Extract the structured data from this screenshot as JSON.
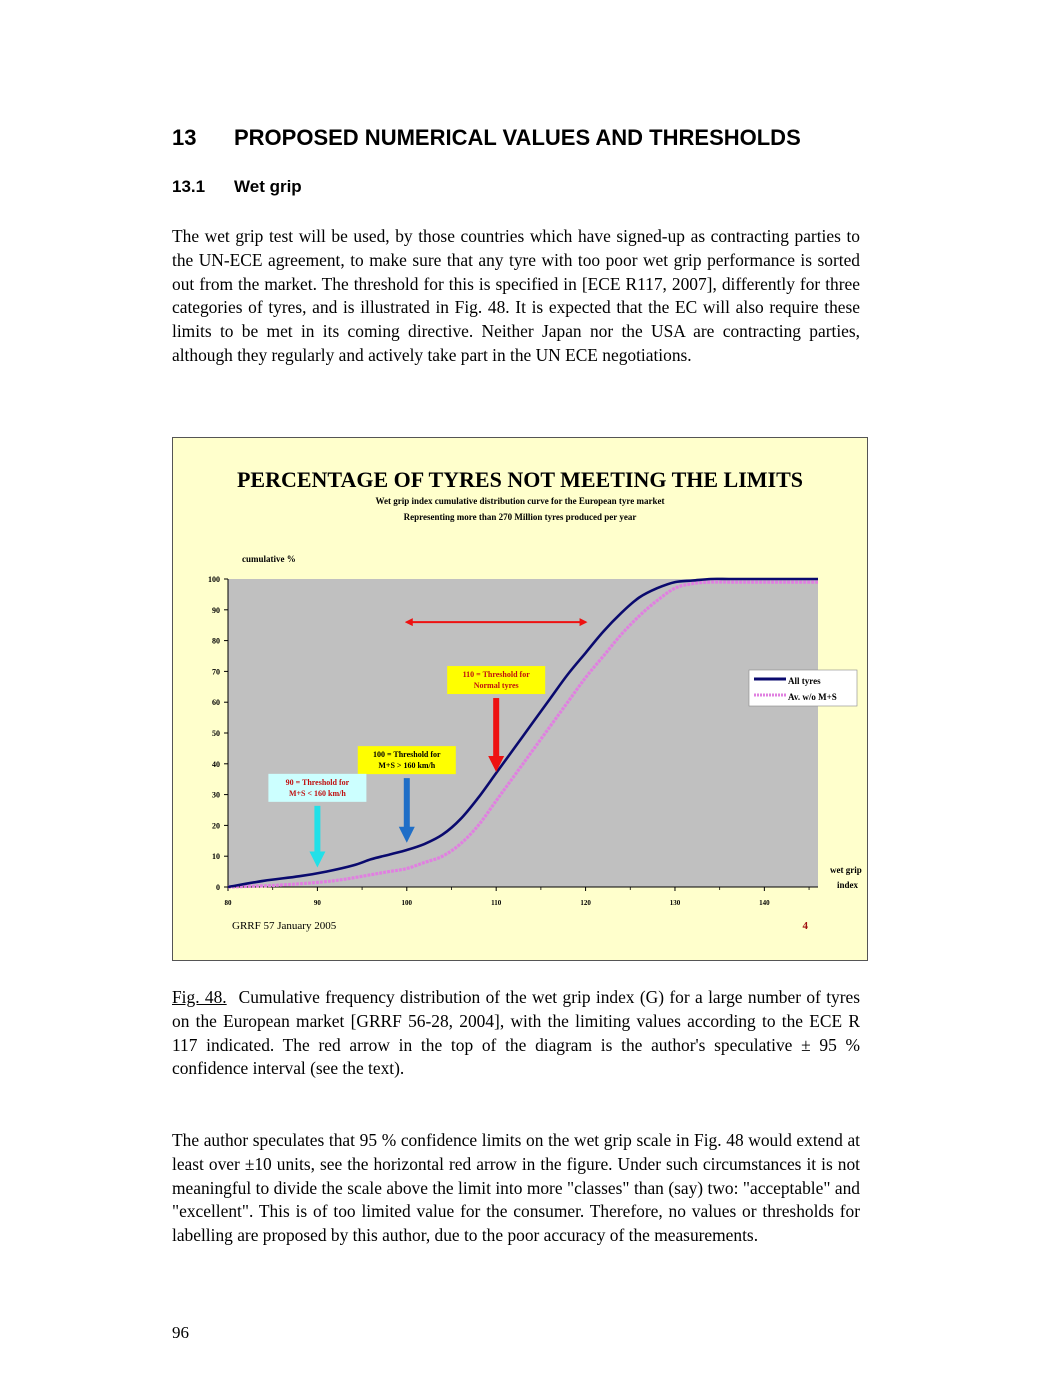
{
  "section": {
    "number": "13",
    "title": "PROPOSED NUMERICAL VALUES AND THRESHOLDS"
  },
  "subsection": {
    "number": "13.1",
    "title": "Wet grip"
  },
  "paragraph1": "The wet grip test will be used, by those countries which have signed-up as contracting parties to the UN-ECE agreement, to make sure that any tyre with too poor wet grip performance is sorted out from the market. The threshold for this is specified in [ECE R117, 2007], differently for three categories of tyres, and is illustrated in Fig. 48. It is expected that the EC will also require these limits to be met in its coming directive. Neither Japan nor the USA are contracting parties, although they regularly and actively take part in the UN ECE negotiations.",
  "caption": {
    "label": "Fig. 48.",
    "text": "Cumulative frequency distribution of the wet grip index (G) for a large number of tyres on the European market [GRRF 56-28, 2004], with the limiting values according to the ECE R 117 indicated. The red arrow in the top of the diagram is the author's speculative ± 95 % confidence interval (see the text)."
  },
  "paragraph2": "The author speculates that 95 % confidence limits on the wet grip scale in Fig. 48 would extend at least over ±10 units, see the horizontal red arrow in the figure. Under such circumstances it is not meaningful to divide the scale above the limit into more \"classes\" than (say) two: \"acceptable\" and \"excellent\". This is of too limited value for the consumer. Therefore, no values or thresholds for labelling are proposed by this author, due to the poor accuracy of the measurements.",
  "page_number": "96",
  "chart_data": {
    "type": "line",
    "title": "PERCENTAGE OF TYRES NOT MEETING THE LIMITS",
    "subtitle_lines": [
      "Wet grip index cumulative distribution curve for the European tyre market",
      "Representing more than 270 Million tyres produced per year"
    ],
    "ylabel": "cumulative %",
    "xlabel_lines": [
      "wet grip",
      "index"
    ],
    "xlim": [
      80,
      146
    ],
    "ylim": [
      0,
      100
    ],
    "x_ticks": [
      80,
      90,
      100,
      110,
      120,
      130,
      140
    ],
    "y_ticks": [
      0,
      10,
      20,
      30,
      40,
      50,
      60,
      70,
      80,
      90,
      100
    ],
    "grid": false,
    "legend_position": "right",
    "series": [
      {
        "name": "All tyres",
        "color": "#0a0a6e",
        "x": [
          80,
          84,
          88,
          91,
          94,
          96,
          98,
          100,
          102,
          104,
          106,
          108,
          110,
          112,
          114,
          116,
          118,
          120,
          122,
          124,
          126,
          128,
          130,
          132,
          134,
          136,
          138,
          140,
          142,
          146
        ],
        "y": [
          0,
          2,
          3.5,
          5,
          7,
          9,
          10.5,
          12,
          14,
          17,
          22,
          29,
          37,
          45,
          53,
          61,
          69,
          76,
          83,
          89,
          94,
          97,
          99,
          99.5,
          100,
          100,
          100,
          100,
          100,
          100
        ]
      },
      {
        "name": "Av. w/o M+S",
        "color": "#e080e0",
        "x": [
          80,
          85,
          90,
          93,
          96,
          98,
          100,
          102,
          104,
          106,
          108,
          110,
          112,
          114,
          116,
          118,
          120,
          122,
          124,
          126,
          128,
          130,
          132,
          134,
          136,
          138,
          140,
          142,
          146
        ],
        "y": [
          0,
          0.5,
          1.5,
          2.5,
          4,
          5,
          6,
          8,
          10,
          14,
          20,
          28,
          36,
          44,
          52,
          60,
          68,
          75,
          82,
          88,
          93,
          97,
          98.5,
          99,
          99,
          99,
          99,
          99,
          99
        ]
      }
    ],
    "annotations": [
      {
        "text_lines": [
          "110 = Threshold for",
          "Normal tyres"
        ],
        "x": 110,
        "arrow_from": 62,
        "arrow_to": 38,
        "box_color": "#ffff00",
        "arrow_color": "#ee1111"
      },
      {
        "text_lines": [
          "100 = Threshold for",
          "M+S > 160 km/h"
        ],
        "x": 100,
        "arrow_from": 36,
        "arrow_to": 15,
        "box_color": "#ffff00",
        "arrow_color": "#1f6ec7"
      },
      {
        "text_lines": [
          "90 = Threshold for",
          "M+S < 160 km/h"
        ],
        "x": 90,
        "arrow_from": 27,
        "arrow_to": 7,
        "box_color": "#ccffff",
        "arrow_color": "#22e0e8"
      }
    ],
    "confidence_arrow": {
      "x_from": 100,
      "x_to": 120,
      "y": 86,
      "color": "#ee1111"
    },
    "footer_left": "GRRF 57 January 2005",
    "footer_right": "4",
    "colors": {
      "background": "#ffffcc",
      "plot_area": "#c0c0c0"
    }
  }
}
